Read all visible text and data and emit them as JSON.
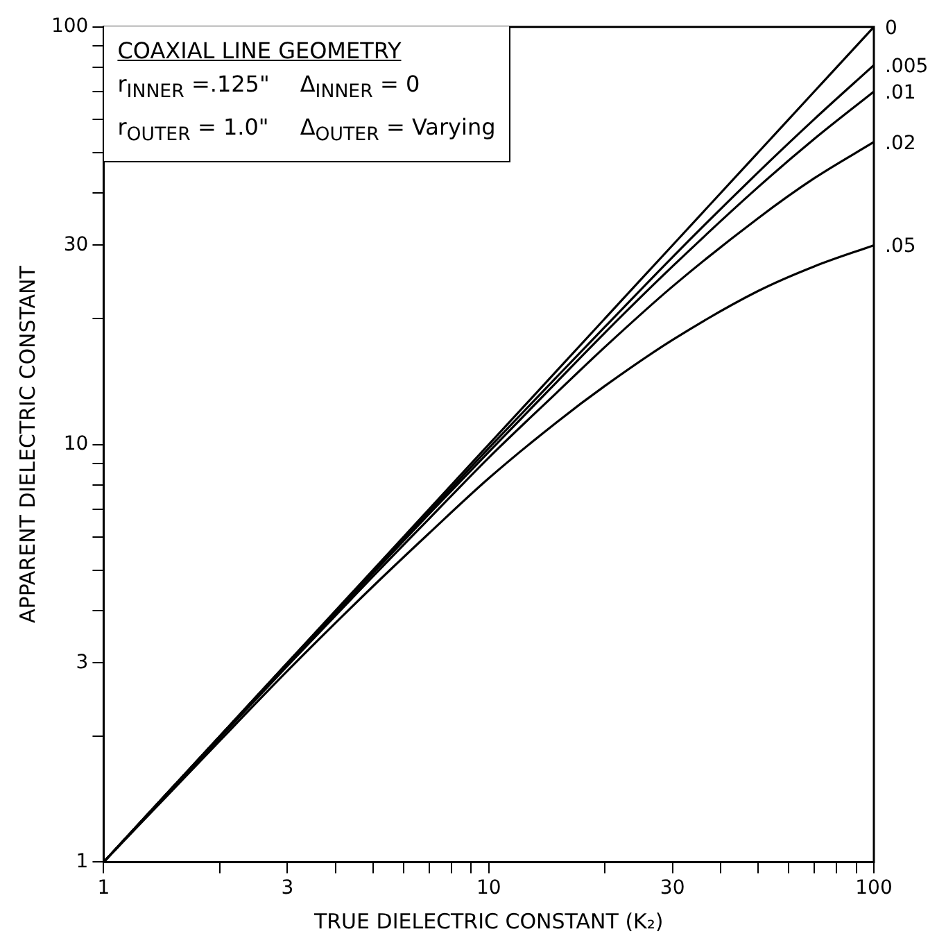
{
  "chart_data": {
    "type": "line",
    "xlabel": "TRUE DIELECTRIC CONSTANT (K₂)",
    "ylabel": "APPARENT DIELECTRIC CONSTANT",
    "log": "xy",
    "grid": false,
    "legend": false,
    "marker": "none",
    "line_style": "solid",
    "x": [
      1,
      2,
      3,
      5,
      7,
      10,
      15,
      20,
      30,
      50,
      70,
      100
    ],
    "xlim": [
      1,
      100
    ],
    "ylim": [
      1,
      100
    ],
    "xticks": [
      1,
      {
        "value": 2,
        "label": null
      },
      3,
      {
        "value": 4,
        "label": null
      },
      {
        "value": 5,
        "label": null
      },
      {
        "value": 6,
        "label": null
      },
      {
        "value": 7,
        "label": null
      },
      {
        "value": 8,
        "label": null
      },
      {
        "value": 9,
        "label": null
      },
      10,
      {
        "value": 20,
        "label": null
      },
      30,
      {
        "value": 40,
        "label": null
      },
      {
        "value": 50,
        "label": null
      },
      {
        "value": 60,
        "label": null
      },
      {
        "value": 70,
        "label": null
      },
      {
        "value": 80,
        "label": null
      },
      {
        "value": 90,
        "label": null
      },
      100
    ],
    "yticks": [
      1,
      {
        "value": 2,
        "label": null
      },
      3,
      {
        "value": 4,
        "label": null
      },
      {
        "value": 5,
        "label": null
      },
      {
        "value": 6,
        "label": null
      },
      {
        "value": 7,
        "label": null
      },
      {
        "value": 8,
        "label": null
      },
      {
        "value": 9,
        "label": null
      },
      10,
      {
        "value": 20,
        "label": null
      },
      30,
      {
        "value": 40,
        "label": null
      },
      {
        "value": 50,
        "label": null
      },
      {
        "value": 60,
        "label": null
      },
      {
        "value": 70,
        "label": null
      },
      {
        "value": 80,
        "label": null
      },
      {
        "value": 90,
        "label": null
      },
      100
    ],
    "series": [
      {
        "name": "0",
        "color": "#000000",
        "values": [
          1,
          2,
          3,
          5,
          7,
          10,
          15,
          20,
          30,
          50,
          70,
          100
        ]
      },
      {
        "name": ".005",
        "color": "#000000",
        "values": [
          1,
          2,
          3,
          4.95,
          6.9,
          9.8,
          14.5,
          19.1,
          28.1,
          44.8,
          60.1,
          81
        ]
      },
      {
        "name": ".01",
        "color": "#000000",
        "values": [
          1,
          2,
          2.97,
          4.91,
          6.82,
          9.6,
          14.1,
          18.5,
          26.7,
          41.3,
          53.9,
          70
        ]
      },
      {
        "name": ".02",
        "color": "#000000",
        "values": [
          1,
          1.98,
          2.95,
          4.83,
          6.64,
          9.3,
          13.3,
          17.1,
          23.9,
          34.8,
          43.4,
          53
        ]
      },
      {
        "name": ".05",
        "color": "#000000",
        "values": [
          1,
          1.95,
          2.87,
          4.57,
          6.13,
          8.3,
          11.3,
          13.8,
          17.8,
          23.3,
          26.7,
          30
        ]
      }
    ],
    "annotations": [
      "COAXIAL LINE GEOMETRY",
      "r$_{INNER}$ =.125\"",
      "Δ$_{INNER}$ = 0",
      "r$_{OUTER}$ = 1.0\"",
      "Δ$_{OUTER}$ = Varying"
    ]
  }
}
